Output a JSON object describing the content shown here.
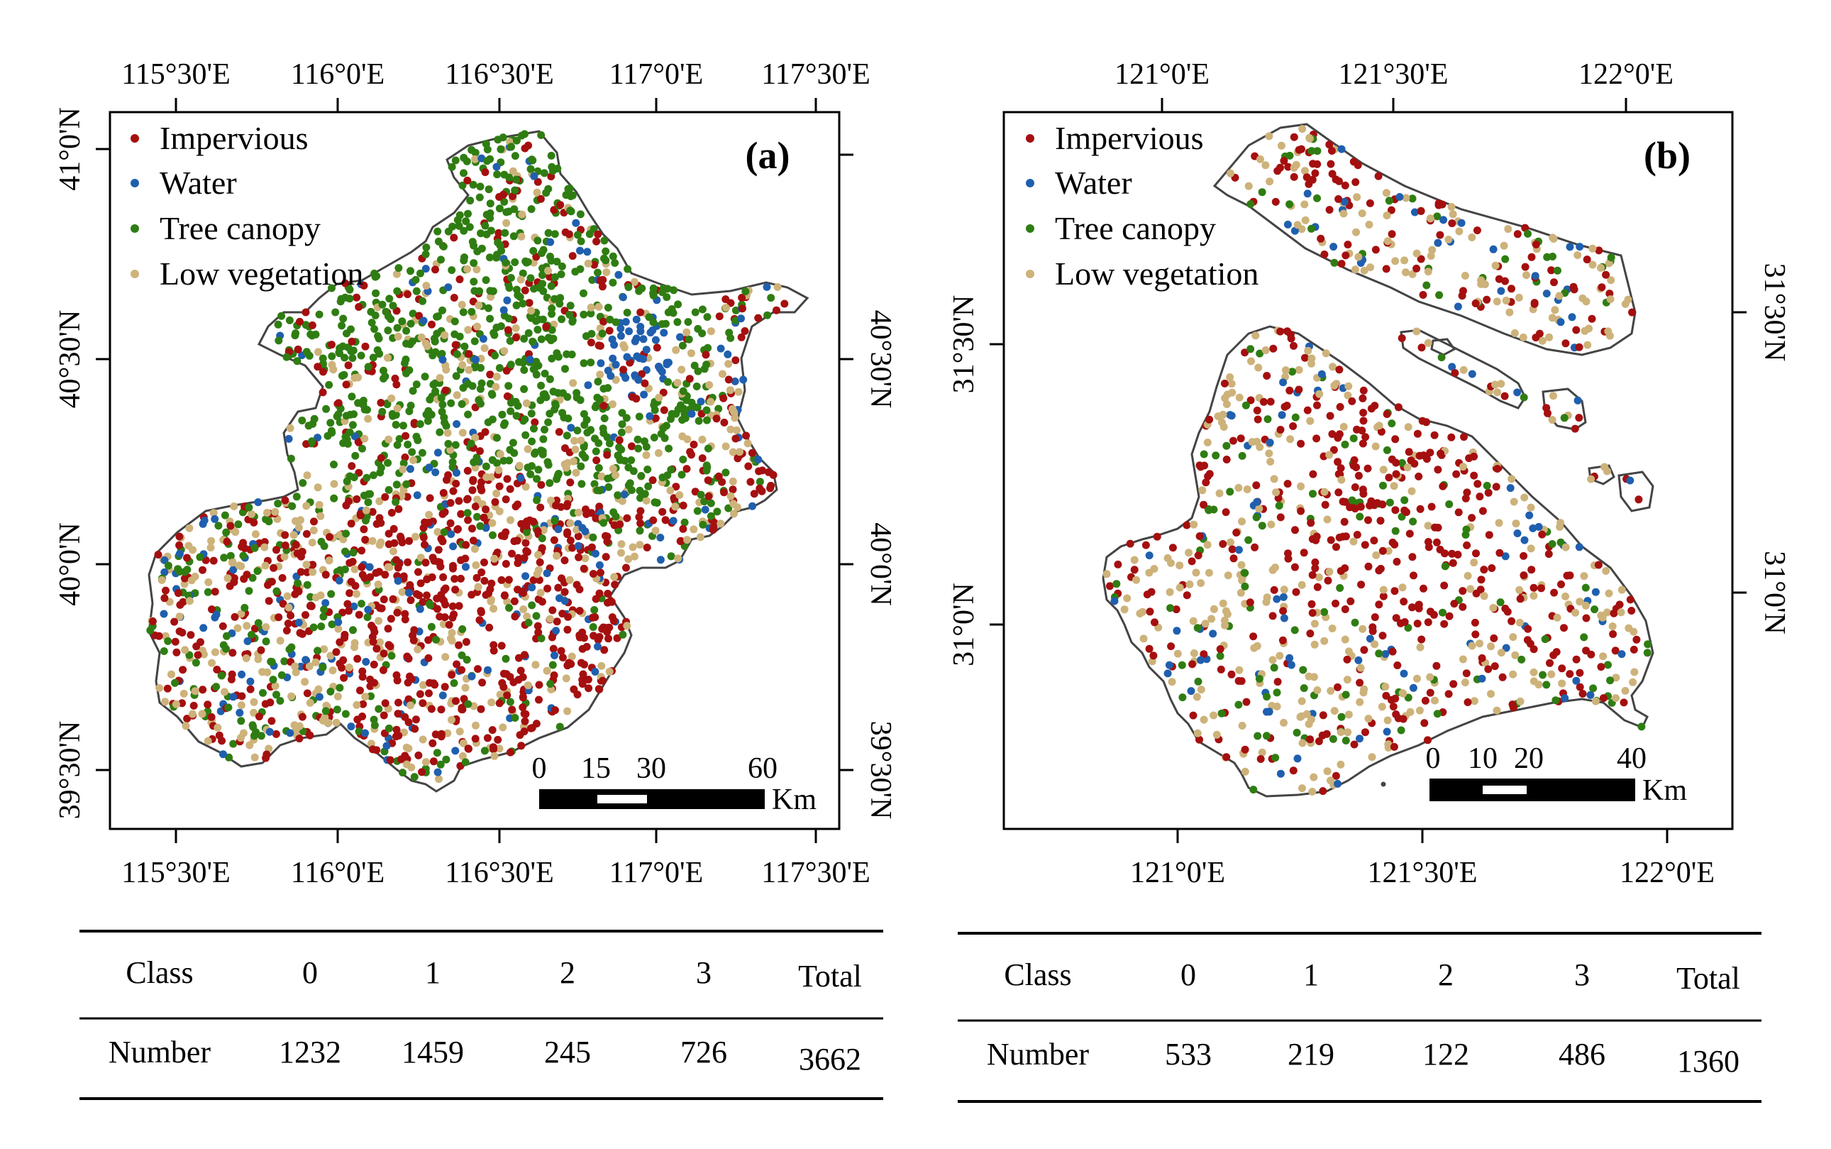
{
  "panels": [
    {
      "id": "a",
      "label": "(a)",
      "legend": [
        {
          "name": "Impervious",
          "color": "#a50f0f"
        },
        {
          "name": "Water",
          "color": "#1f5fae"
        },
        {
          "name": "Tree canopy",
          "color": "#2f7d12"
        },
        {
          "name": "Low vegetation",
          "color": "#cdb27a"
        }
      ],
      "top_ticks": [
        "115°30'E",
        "116°0'E",
        "116°30'E",
        "117°0'E",
        "117°30'E"
      ],
      "bottom_ticks": [
        "115°30'E",
        "116°0'E",
        "116°30'E",
        "117°0'E",
        "117°30'E"
      ],
      "left_ticks": [
        "41°0'N",
        "40°30'N",
        "40°0'N",
        "39°30'N"
      ],
      "right_ticks": [
        "40°30'N",
        "40°0'N",
        "39°30'N"
      ],
      "scale_labels": [
        "0",
        "15",
        "30",
        "60"
      ],
      "scale_unit": "Km",
      "table": {
        "header": [
          "Class",
          "0",
          "1",
          "2",
          "3",
          "Total"
        ],
        "row": [
          "Number",
          "1232",
          "1459",
          "245",
          "726",
          "3662"
        ]
      }
    },
    {
      "id": "b",
      "label": "(b)",
      "legend": [
        {
          "name": "Impervious",
          "color": "#a50f0f"
        },
        {
          "name": "Water",
          "color": "#1f5fae"
        },
        {
          "name": "Tree canopy",
          "color": "#2f7d12"
        },
        {
          "name": "Low vegetation",
          "color": "#cdb27a"
        }
      ],
      "top_ticks": [
        "121°0'E",
        "121°30'E",
        "122°0'E"
      ],
      "bottom_ticks": [
        "121°0'E",
        "121°30'E",
        "122°0'E"
      ],
      "left_ticks": [
        "31°30'N",
        "31°0'N"
      ],
      "right_ticks": [
        "31°30'N",
        "31°0'N"
      ],
      "scale_labels": [
        "0",
        "10",
        "20",
        "40"
      ],
      "scale_unit": "Km",
      "table": {
        "header": [
          "Class",
          "0",
          "1",
          "2",
          "3",
          "Total"
        ],
        "row": [
          "Number",
          "533",
          "219",
          "122",
          "486",
          "1360"
        ]
      }
    }
  ]
}
